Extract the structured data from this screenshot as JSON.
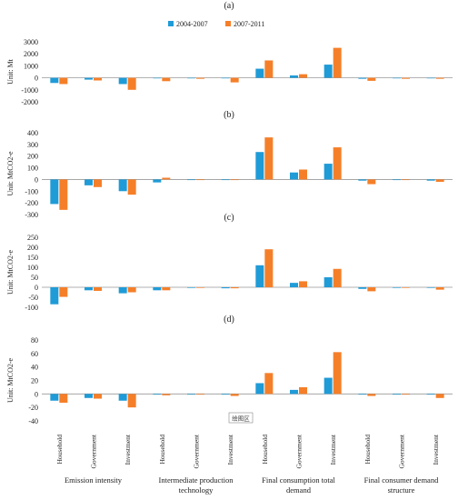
{
  "chart_data": {
    "type": "bar",
    "series_names": [
      "2004-2007",
      "2007-2011"
    ],
    "colors": [
      "#1f9bd7",
      "#f57f29"
    ],
    "categories": [
      "Household",
      "Government",
      "Investment",
      "Household",
      "Government",
      "Investment",
      "Household",
      "Government",
      "Investment",
      "Household",
      "Government",
      "Investment"
    ],
    "groups": [
      "Emission intensity",
      "Intermediate production technology",
      "Final consumption total demand",
      "Final consumer demand structure"
    ],
    "overlay_text": "绘图区",
    "panels": [
      {
        "label": "(a)",
        "unit": "Unit: Mt",
        "ylim": [
          -2000,
          3000
        ],
        "yticks": [
          -2000,
          -1000,
          0,
          1000,
          2000,
          3000
        ],
        "series": [
          {
            "name": "2004-2007",
            "values": [
              -430,
              -150,
              -520,
              -30,
              -30,
              -30,
              760,
              200,
              1100,
              -80,
              -40,
              -40
            ]
          },
          {
            "name": "2007-2011",
            "values": [
              -520,
              -220,
              -1000,
              -280,
              -80,
              -380,
              1450,
              300,
              2500,
              -250,
              -80,
              -80
            ]
          }
        ]
      },
      {
        "label": "(b)",
        "unit": "Unit: MtCO2-e",
        "ylim": [
          -300,
          400
        ],
        "yticks": [
          -300,
          -200,
          -100,
          0,
          100,
          200,
          300,
          400
        ],
        "series": [
          {
            "name": "2004-2007",
            "values": [
              -210,
              -50,
              -100,
              -25,
              -5,
              -5,
              235,
              60,
              135,
              -10,
              -5,
              -10
            ]
          },
          {
            "name": "2007-2011",
            "values": [
              -260,
              -65,
              -130,
              15,
              -5,
              -5,
              360,
              85,
              275,
              -40,
              -5,
              -20
            ]
          }
        ]
      },
      {
        "label": "(c)",
        "unit": "Unit: MtCO2-e",
        "ylim": [
          -100,
          250
        ],
        "yticks": [
          -100,
          -50,
          0,
          50,
          100,
          150,
          200,
          250
        ],
        "series": [
          {
            "name": "2004-2007",
            "values": [
              -85,
              -15,
              -30,
              -15,
              -3,
              -5,
              110,
              22,
              50,
              -8,
              -3,
              -3
            ]
          },
          {
            "name": "2007-2011",
            "values": [
              -48,
              -18,
              -25,
              -15,
              -3,
              -5,
              190,
              30,
              92,
              -20,
              -3,
              -12
            ]
          }
        ]
      },
      {
        "label": "(d)",
        "unit": "Unit: MtCO2-e",
        "ylim": [
          -40,
          80
        ],
        "yticks": [
          -40,
          -20,
          0,
          20,
          40,
          60,
          80
        ],
        "series": [
          {
            "name": "2004-2007",
            "values": [
              -10,
              -6,
              -10,
              -1,
              -1,
              -1,
              16,
              6,
              24,
              -1,
              -1,
              -1
            ]
          },
          {
            "name": "2007-2011",
            "values": [
              -13,
              -7,
              -20,
              -2,
              -1,
              -3,
              31,
              10,
              62,
              -3,
              -1,
              -6
            ]
          }
        ]
      }
    ]
  }
}
